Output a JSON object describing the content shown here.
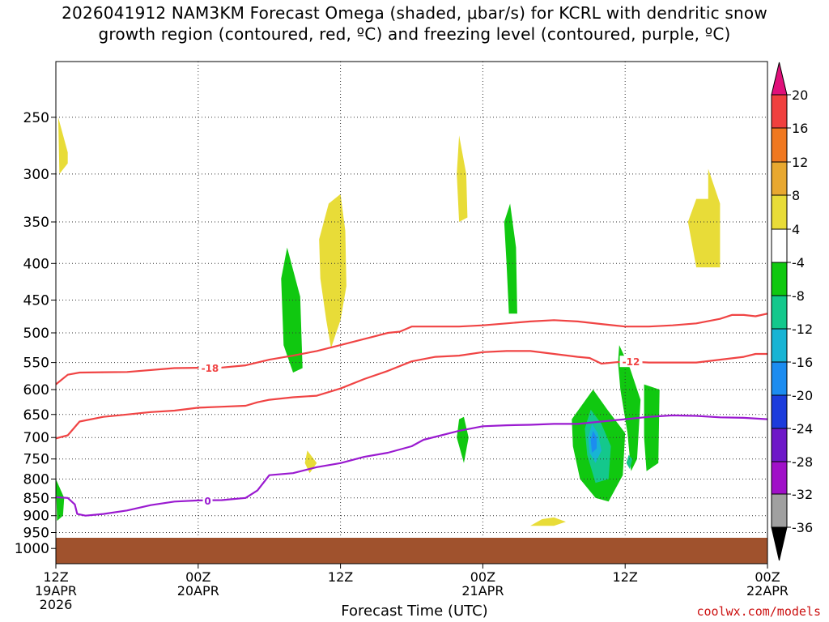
{
  "header": {
    "title_line1": "2026041912 NAM3KM Forecast Omega (shaded, μbar/s) for KCRL with dendritic snow",
    "title_line2": "growth region (contoured, red, ºC) and freezing level (contoured, purple, ºC)"
  },
  "footer": {
    "credit": "coolwx.com/models"
  },
  "chart_data": {
    "type": "heatmap",
    "xlabel": "Forecast Time (UTC)",
    "ylabel": "",
    "x_hours_range": [
      0,
      60
    ],
    "y_pressure_range_hPa": [
      1020,
      200
    ],
    "x_ticks": [
      {
        "hour": 0,
        "line1": "12Z",
        "line2": "19APR",
        "line3": "2026"
      },
      {
        "hour": 12,
        "line1": "00Z",
        "line2": "20APR",
        "line3": ""
      },
      {
        "hour": 24,
        "line1": "12Z",
        "line2": "",
        "line3": ""
      },
      {
        "hour": 36,
        "line1": "00Z",
        "line2": "21APR",
        "line3": ""
      },
      {
        "hour": 48,
        "line1": "12Z",
        "line2": "",
        "line3": ""
      },
      {
        "hour": 60,
        "line1": "00Z",
        "line2": "22APR",
        "line3": ""
      }
    ],
    "y_ticks": [
      "250",
      "300",
      "350",
      "400",
      "450",
      "500",
      "550",
      "600",
      "650",
      "700",
      "750",
      "800",
      "850",
      "900",
      "950",
      "1000"
    ],
    "colorbar": {
      "labels": [
        "20",
        "16",
        "12",
        "8",
        "4",
        "-4",
        "-8",
        "-12",
        "-16",
        "-20",
        "-24",
        "-28",
        "-32",
        "-36"
      ],
      "bins": [
        {
          "from": 16,
          "to": 20,
          "color": "#f0403e"
        },
        {
          "from": 12,
          "to": 16,
          "color": "#f07820"
        },
        {
          "from": 8,
          "to": 12,
          "color": "#e8a830"
        },
        {
          "from": 4,
          "to": 8,
          "color": "#e8dc38"
        },
        {
          "from": -4,
          "to": 4,
          "color": "#ffffff"
        },
        {
          "from": -8,
          "to": -4,
          "color": "#10c810"
        },
        {
          "from": -12,
          "to": -8,
          "color": "#14c88c"
        },
        {
          "from": -16,
          "to": -12,
          "color": "#18b4d4"
        },
        {
          "from": -20,
          "to": -16,
          "color": "#1c8cf0"
        },
        {
          "from": -24,
          "to": -20,
          "color": "#1c3cdc"
        },
        {
          "from": -28,
          "to": -24,
          "color": "#6e18c8"
        },
        {
          "from": -32,
          "to": -28,
          "color": "#a010c8"
        },
        {
          "from": -36,
          "to": -32,
          "color": "#a0a0a0"
        }
      ],
      "top_arrow_color": "#e0107a",
      "bottom_arrow_color": "#000000"
    },
    "ground_color": "#a0522d",
    "contours": [
      {
        "name": "minus18-isotherm",
        "label": "-18",
        "color": "#f04444",
        "label_at_hour": 13,
        "points": [
          [
            0,
            590
          ],
          [
            1,
            572
          ],
          [
            2,
            568
          ],
          [
            6,
            567
          ],
          [
            10,
            560
          ],
          [
            14,
            559
          ],
          [
            16,
            555
          ],
          [
            18,
            545
          ],
          [
            20,
            538
          ],
          [
            22,
            530
          ],
          [
            24,
            520
          ],
          [
            26,
            510
          ],
          [
            27,
            505
          ],
          [
            28,
            500
          ],
          [
            29,
            498
          ],
          [
            30,
            490
          ],
          [
            31,
            490
          ],
          [
            34,
            490
          ],
          [
            36,
            488
          ],
          [
            38,
            485
          ],
          [
            40,
            482
          ],
          [
            42,
            480
          ],
          [
            44,
            482
          ],
          [
            46,
            486
          ],
          [
            48,
            490
          ],
          [
            50,
            490
          ],
          [
            52,
            488
          ],
          [
            54,
            485
          ],
          [
            56,
            478
          ],
          [
            57,
            472
          ],
          [
            58,
            472
          ],
          [
            59,
            474
          ],
          [
            60,
            470
          ]
        ]
      },
      {
        "name": "minus12-isotherm",
        "label": "-12",
        "color": "#f04444",
        "label_at_hour": 48.5,
        "points": [
          [
            0,
            702
          ],
          [
            1,
            695
          ],
          [
            2,
            665
          ],
          [
            4,
            655
          ],
          [
            6,
            650
          ],
          [
            8,
            645
          ],
          [
            10,
            642
          ],
          [
            12,
            636
          ],
          [
            14,
            634
          ],
          [
            16,
            632
          ],
          [
            17,
            625
          ],
          [
            18,
            620
          ],
          [
            20,
            615
          ],
          [
            22,
            612
          ],
          [
            24,
            598
          ],
          [
            26,
            580
          ],
          [
            28,
            565
          ],
          [
            30,
            548
          ],
          [
            32,
            540
          ],
          [
            34,
            538
          ],
          [
            36,
            532
          ],
          [
            38,
            530
          ],
          [
            40,
            530
          ],
          [
            42,
            535
          ],
          [
            44,
            540
          ],
          [
            45,
            542
          ],
          [
            46,
            552
          ],
          [
            48,
            548
          ],
          [
            50,
            550
          ],
          [
            52,
            550
          ],
          [
            54,
            550
          ],
          [
            56,
            545
          ],
          [
            58,
            540
          ],
          [
            59,
            535
          ],
          [
            60,
            535
          ]
        ]
      },
      {
        "name": "freezing-level",
        "label": "0",
        "color": "#9a1ad0",
        "label_at_hour": 12.8,
        "points": [
          [
            0,
            848
          ],
          [
            1,
            850
          ],
          [
            1.6,
            868
          ],
          [
            1.8,
            895
          ],
          [
            2.5,
            900
          ],
          [
            4,
            895
          ],
          [
            6,
            885
          ],
          [
            8,
            870
          ],
          [
            10,
            860
          ],
          [
            12,
            857
          ],
          [
            14,
            856
          ],
          [
            15,
            853
          ],
          [
            16,
            850
          ],
          [
            17,
            830
          ],
          [
            18,
            790
          ],
          [
            20,
            785
          ],
          [
            22,
            770
          ],
          [
            24,
            760
          ],
          [
            26,
            745
          ],
          [
            28,
            735
          ],
          [
            30,
            720
          ],
          [
            31,
            705
          ],
          [
            34,
            685
          ],
          [
            36,
            675
          ],
          [
            38,
            673
          ],
          [
            40,
            672
          ],
          [
            42,
            670
          ],
          [
            44,
            670
          ],
          [
            46,
            665
          ],
          [
            48,
            660
          ],
          [
            50,
            655
          ],
          [
            52,
            652
          ],
          [
            54,
            653
          ],
          [
            56,
            656
          ],
          [
            58,
            657
          ],
          [
            60,
            660
          ]
        ]
      }
    ],
    "omega_regions": [
      {
        "value_bin": [
          4,
          8
        ],
        "points": [
          [
            0.2,
            250
          ],
          [
            1,
            280
          ],
          [
            1,
            290
          ],
          [
            0.3,
            300
          ]
        ]
      },
      {
        "value_bin": [
          4,
          8
        ],
        "points": [
          [
            23,
            330
          ],
          [
            24,
            320
          ],
          [
            24.4,
            360
          ],
          [
            24.5,
            430
          ],
          [
            24,
            480
          ],
          [
            23.2,
            525
          ],
          [
            22.8,
            480
          ],
          [
            22.3,
            420
          ],
          [
            22.2,
            370
          ]
        ]
      },
      {
        "value_bin": [
          4,
          8
        ],
        "points": [
          [
            34,
            265
          ],
          [
            34.6,
            300
          ],
          [
            34.7,
            345
          ],
          [
            34,
            350
          ],
          [
            33.8,
            300
          ]
        ]
      },
      {
        "value_bin": [
          4,
          8
        ],
        "points": [
          [
            55,
            295
          ],
          [
            56,
            330
          ],
          [
            56,
            405
          ],
          [
            54,
            405
          ],
          [
            53.3,
            350
          ],
          [
            54,
            325
          ],
          [
            55,
            325
          ]
        ]
      },
      {
        "value_bin": [
          4,
          8
        ],
        "points": [
          [
            21.2,
            730
          ],
          [
            22,
            760
          ],
          [
            21.4,
            785
          ],
          [
            21,
            760
          ]
        ]
      },
      {
        "value_bin": [
          4,
          8
        ],
        "points": [
          [
            41,
            910
          ],
          [
            42,
            905
          ],
          [
            43,
            918
          ],
          [
            42,
            930
          ],
          [
            40,
            930
          ]
        ]
      },
      {
        "value_bin": [
          -8,
          -4
        ],
        "points": [
          [
            19.5,
            380
          ],
          [
            20.6,
            445
          ],
          [
            20.8,
            560
          ],
          [
            20,
            568
          ],
          [
            19.2,
            520
          ],
          [
            19,
            420
          ]
        ]
      },
      {
        "value_bin": [
          -8,
          -4
        ],
        "points": [
          [
            38.3,
            330
          ],
          [
            38.8,
            380
          ],
          [
            38.9,
            470
          ],
          [
            38.2,
            470
          ],
          [
            38,
            400
          ],
          [
            37.8,
            350
          ]
        ]
      },
      {
        "value_bin": [
          -8,
          -4
        ],
        "points": [
          [
            34.4,
            655
          ],
          [
            34.8,
            700
          ],
          [
            34.4,
            760
          ],
          [
            33.8,
            700
          ],
          [
            34,
            660
          ]
        ]
      },
      {
        "value_bin": [
          -8,
          -4
        ],
        "points": [
          [
            0,
            800
          ],
          [
            0.7,
            850
          ],
          [
            0.6,
            900
          ],
          [
            0.1,
            915
          ]
        ]
      },
      {
        "value_bin": [
          -8,
          -4
        ],
        "points": [
          [
            45.3,
            600
          ],
          [
            46.5,
            640
          ],
          [
            48,
            690
          ],
          [
            47.8,
            790
          ],
          [
            46.6,
            860
          ],
          [
            45.5,
            850
          ],
          [
            44.2,
            800
          ],
          [
            43.6,
            720
          ],
          [
            43.5,
            660
          ]
        ]
      },
      {
        "value_bin": [
          -8,
          -4
        ],
        "points": [
          [
            47.5,
            520
          ],
          [
            48.4,
            560
          ],
          [
            49.3,
            620
          ],
          [
            49,
            750
          ],
          [
            48.5,
            780
          ],
          [
            48.2,
            690
          ],
          [
            47.6,
            600
          ],
          [
            47.4,
            550
          ]
        ]
      },
      {
        "value_bin": [
          -8,
          -4
        ],
        "points": [
          [
            49.6,
            590
          ],
          [
            50.9,
            600
          ],
          [
            50.8,
            760
          ],
          [
            49.8,
            780
          ],
          [
            49.6,
            700
          ]
        ]
      },
      {
        "value_bin": [
          -12,
          -8
        ],
        "points": [
          [
            45.1,
            640
          ],
          [
            46,
            670
          ],
          [
            46.8,
            720
          ],
          [
            46.6,
            800
          ],
          [
            45.5,
            810
          ],
          [
            44.8,
            740
          ],
          [
            44.6,
            680
          ]
        ]
      },
      {
        "value_bin": [
          -12,
          -8
        ],
        "points": [
          [
            48.3,
            740
          ],
          [
            48.6,
            750
          ],
          [
            48.4,
            775
          ],
          [
            48.1,
            760
          ]
        ]
      },
      {
        "value_bin": [
          -16,
          -12
        ],
        "points": [
          [
            45.2,
            670
          ],
          [
            45.7,
            690
          ],
          [
            46,
            730
          ],
          [
            45.5,
            760
          ],
          [
            45,
            735
          ],
          [
            44.9,
            700
          ]
        ]
      },
      {
        "value_bin": [
          -20,
          -16
        ],
        "points": [
          [
            45.3,
            685
          ],
          [
            45.6,
            700
          ],
          [
            45.6,
            725
          ],
          [
            45.2,
            735
          ],
          [
            45.1,
            705
          ]
        ]
      }
    ]
  }
}
